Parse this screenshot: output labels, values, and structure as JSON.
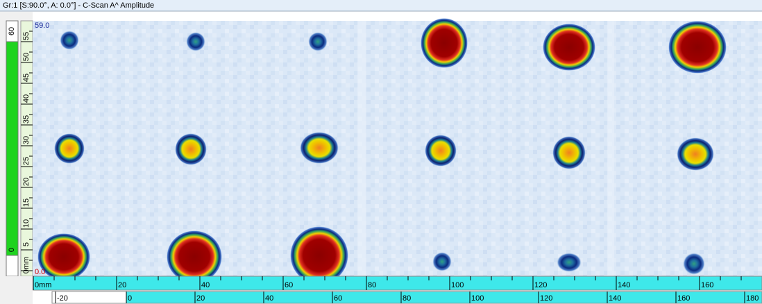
{
  "title": "Gr:1 [S:90.0°, A: 0.0°] - C-Scan A^ Amplitude",
  "amplitude_scale": {
    "max": "59.0",
    "min": "0.0"
  },
  "vertical_bar": {
    "top": "60",
    "bottom": "0"
  },
  "side_ruler": {
    "labels": [
      "55",
      "50",
      "45",
      "40",
      "35",
      "30",
      "25",
      "20",
      "15",
      "10",
      "5",
      "0mm"
    ]
  },
  "scan_ruler": {
    "labels": [
      "0mm",
      "20",
      "40",
      "60",
      "80",
      "100",
      "120",
      "140",
      "160"
    ]
  },
  "index_ruler": {
    "labels": [
      "-20",
      "0",
      "20",
      "40",
      "60",
      "80",
      "100",
      "120",
      "140",
      "160",
      "180"
    ]
  }
}
